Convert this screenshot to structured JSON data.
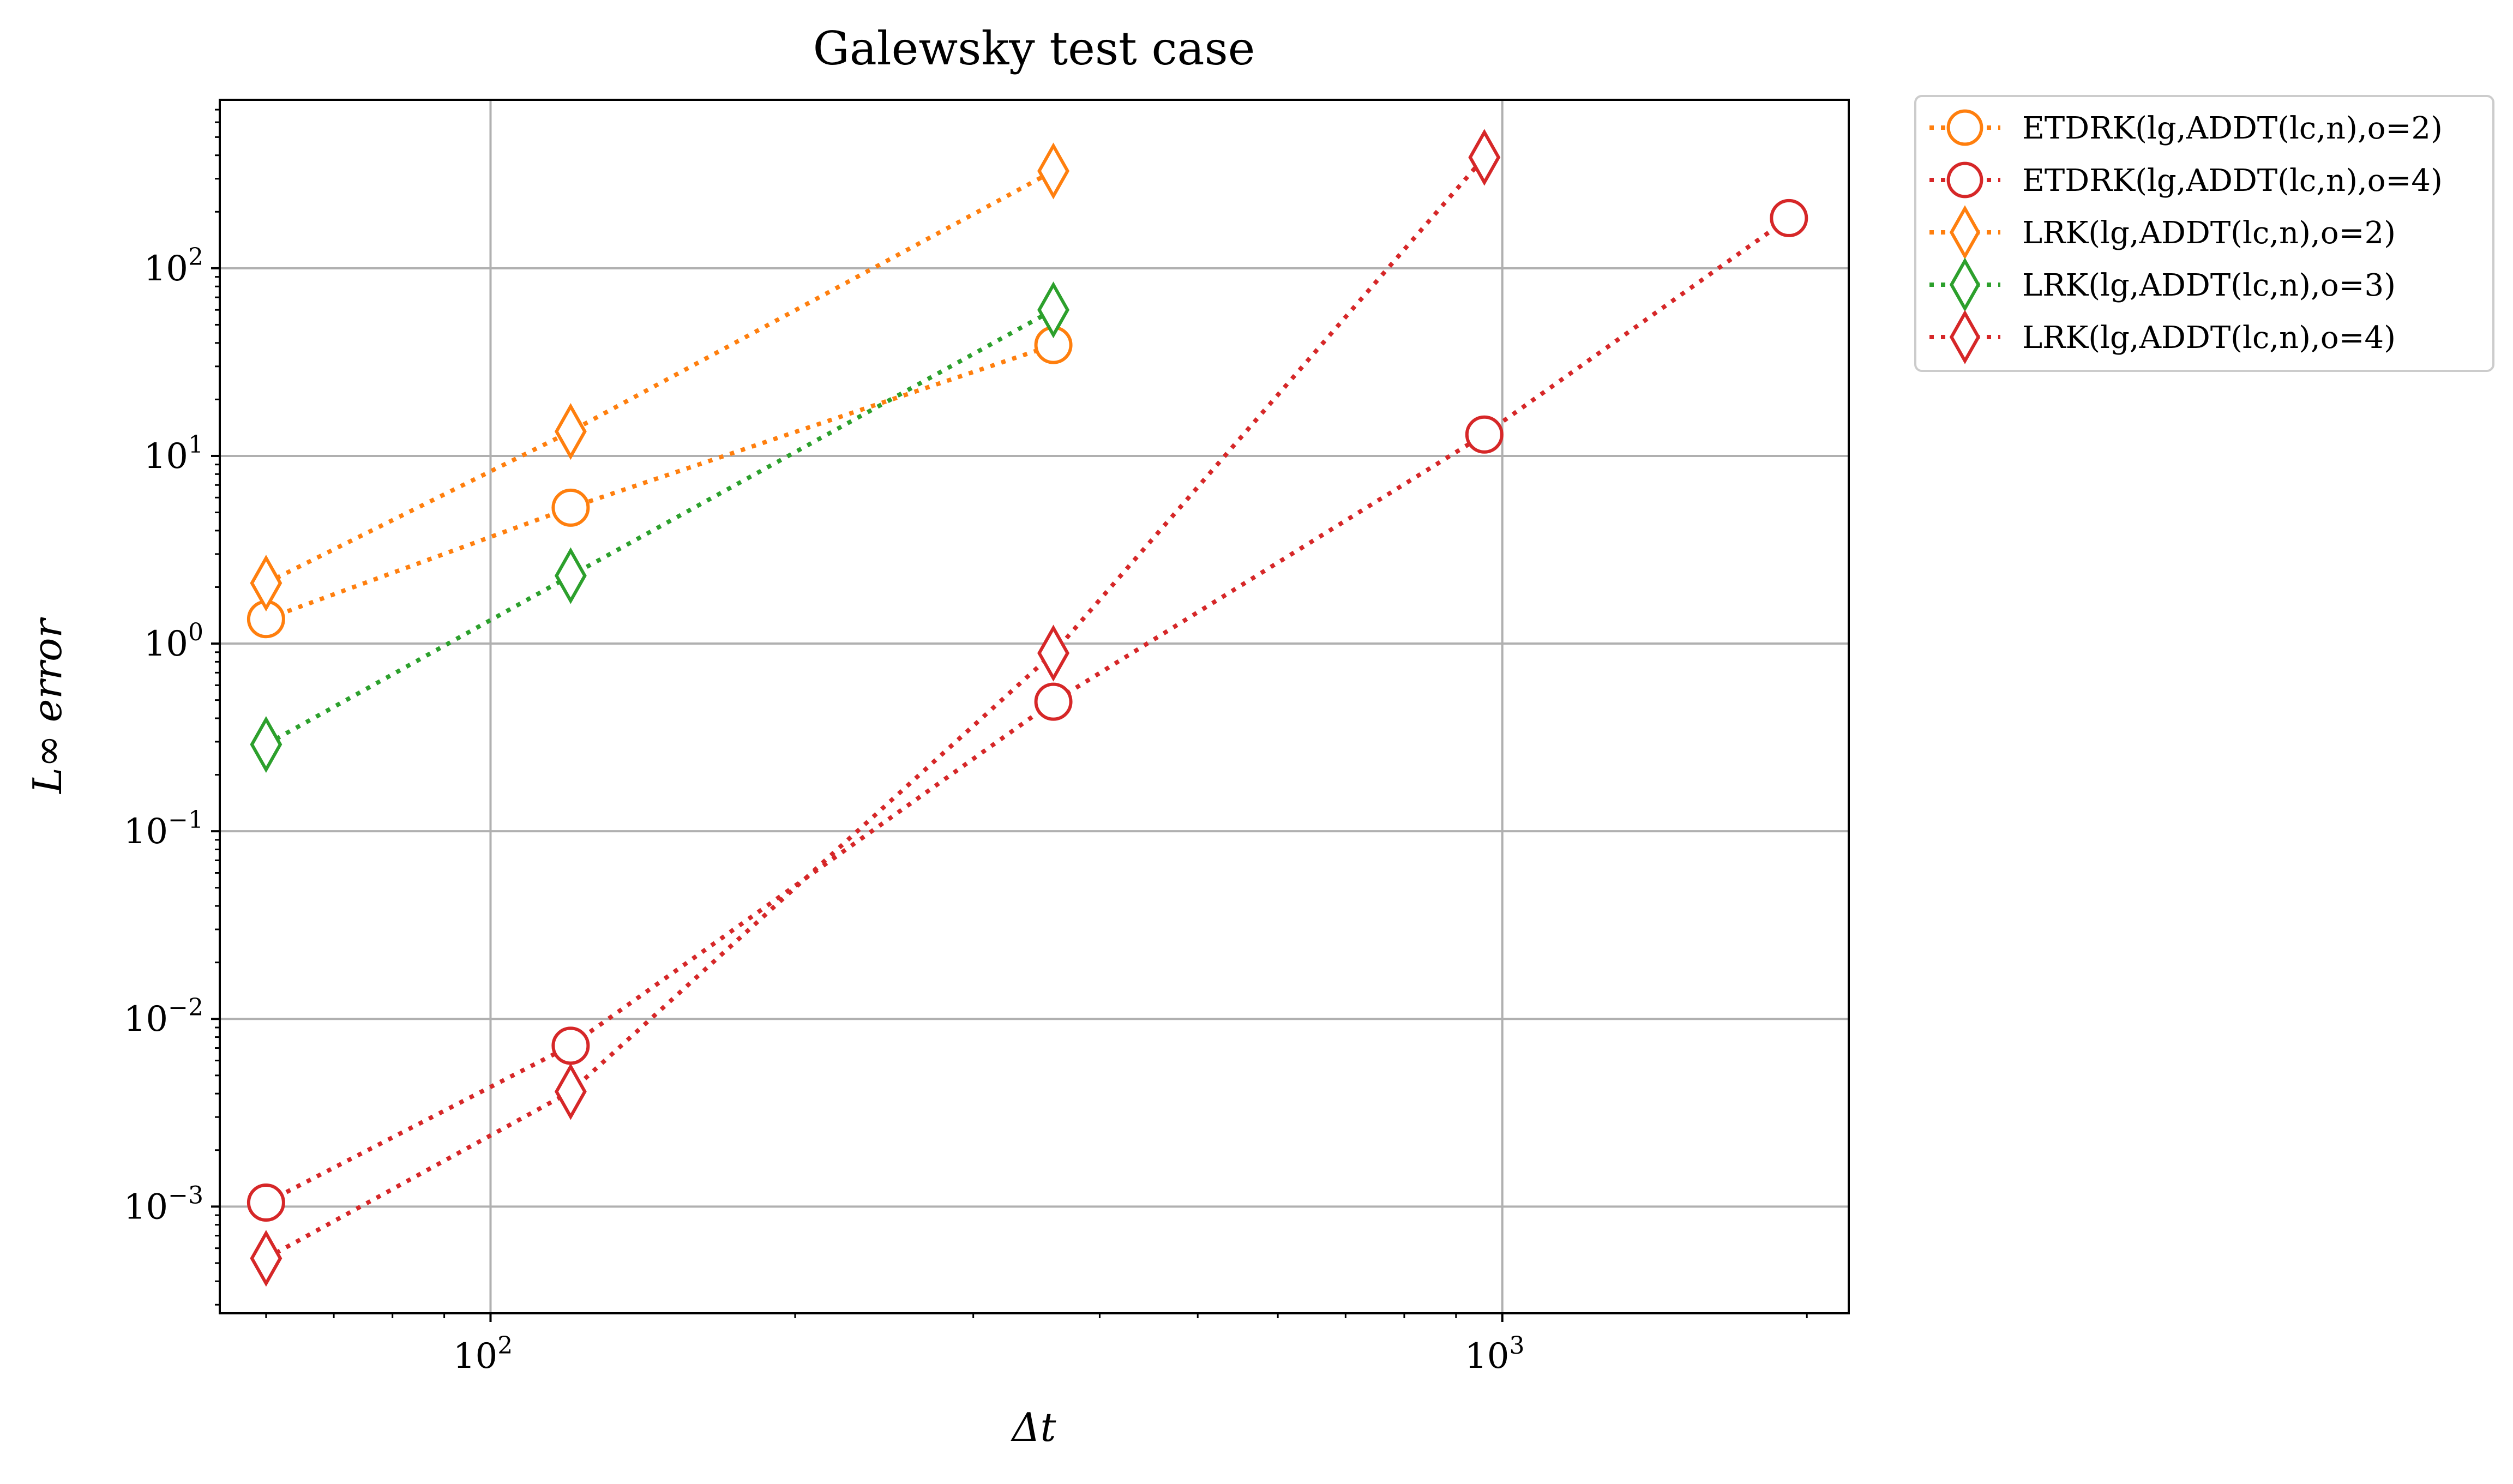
{
  "chart_data": {
    "type": "scatter",
    "title": "Galewsky test case",
    "xlabel": "Δt",
    "ylabel": "L∞ error",
    "xscale": "log",
    "yscale": "log",
    "xlim": [
      54,
      2200
    ],
    "ylim": [
      0.00027,
      790
    ],
    "x_ticks": [
      {
        "value": 100,
        "base": "10",
        "exp": "2"
      },
      {
        "value": 1000,
        "base": "10",
        "exp": "3"
      }
    ],
    "y_ticks": [
      {
        "value": 0.001,
        "base": "10",
        "exp": "−3"
      },
      {
        "value": 0.01,
        "base": "10",
        "exp": "−2"
      },
      {
        "value": 0.1,
        "base": "10",
        "exp": "−1"
      },
      {
        "value": 1,
        "base": "10",
        "exp": "0"
      },
      {
        "value": 10,
        "base": "10",
        "exp": "1"
      },
      {
        "value": 100,
        "base": "10",
        "exp": "2"
      }
    ],
    "grid": true,
    "legend_position": "outside-top-right",
    "series": [
      {
        "name": "ETDRK(lg,ADDT(lc,n),o=2)",
        "color": "#ff7f0e",
        "marker": "circle",
        "line": "dotted",
        "x": [
          60,
          120,
          360
        ],
        "y": [
          1.35,
          5.3,
          39
        ]
      },
      {
        "name": "ETDRK(lg,ADDT(lc,n),o=4)",
        "color": "#d62728",
        "marker": "circle",
        "line": "dotted",
        "x": [
          60,
          120,
          360,
          960,
          1920
        ],
        "y": [
          0.00105,
          0.0072,
          0.49,
          13,
          185
        ]
      },
      {
        "name": "LRK(lg,ADDT(lc,n),o=2)",
        "color": "#ff7f0e",
        "marker": "diamond",
        "line": "dotted",
        "x": [
          60,
          120,
          360
        ],
        "y": [
          2.1,
          13.5,
          330
        ]
      },
      {
        "name": "LRK(lg,ADDT(lc,n),o=3)",
        "color": "#2ca02c",
        "marker": "diamond",
        "line": "dotted",
        "x": [
          60,
          120,
          360
        ],
        "y": [
          0.29,
          2.3,
          60
        ]
      },
      {
        "name": "LRK(lg,ADDT(lc,n),o=4)",
        "color": "#d62728",
        "marker": "diamond",
        "line": "dotted",
        "x": [
          60,
          120,
          360,
          960
        ],
        "y": [
          0.00053,
          0.0041,
          0.89,
          390
        ]
      }
    ]
  }
}
